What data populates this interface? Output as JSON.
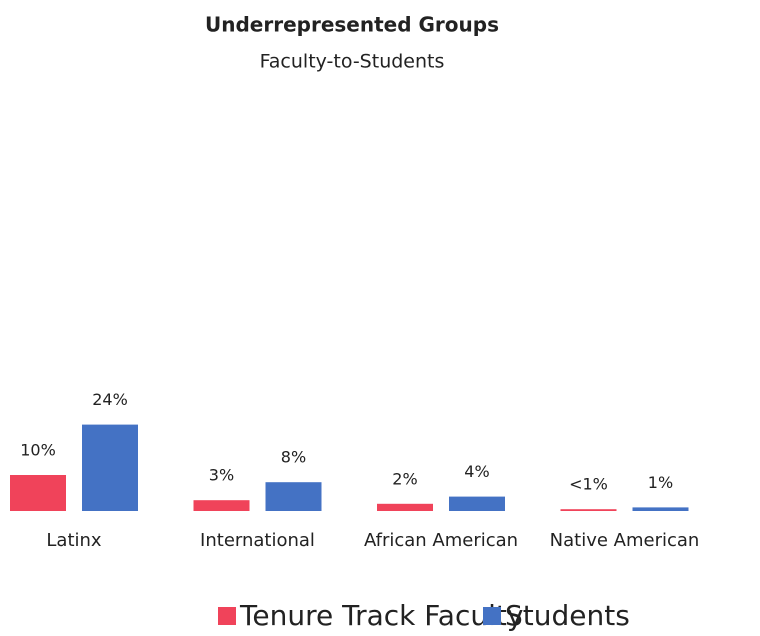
{
  "chart_data": {
    "type": "bar",
    "title": "Underrepresented Groups",
    "subtitle": "Faculty-to-Students",
    "categories": [
      "Latinx",
      "International",
      "African American",
      "Native American"
    ],
    "series": [
      {
        "name": "Tenure Track Faculty",
        "color": "#f0435a",
        "values": [
          10,
          3,
          2,
          0.5
        ],
        "value_labels": [
          "10%",
          "3%",
          "2%",
          "<1%"
        ]
      },
      {
        "name": "Students",
        "color": "#4472c4",
        "values": [
          24,
          8,
          4,
          1
        ],
        "value_labels": [
          "24%",
          "8%",
          "4%",
          "1%"
        ]
      }
    ],
    "legend": "bottom"
  }
}
